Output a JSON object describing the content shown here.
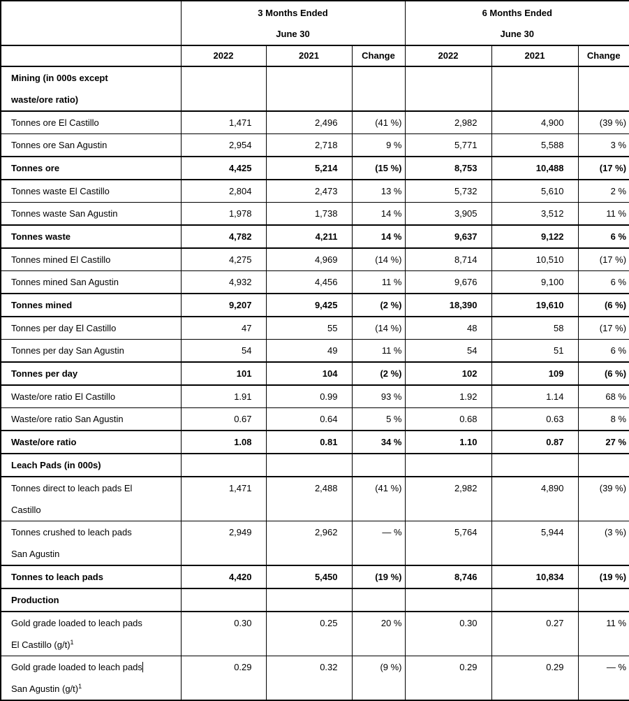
{
  "table": {
    "groups": [
      {
        "period": "3 Months Ended",
        "date": "June 30"
      },
      {
        "period": "6 Months Ended",
        "date": "June 30"
      }
    ],
    "col_headers": [
      "2022",
      "2021",
      "Change",
      "2022",
      "2021",
      "Change"
    ],
    "rows": [
      {
        "lines": [
          "Mining (in 000s except",
          "waste/ore ratio)"
        ],
        "bold": true,
        "section": true,
        "values": [
          "",
          "",
          "",
          "",
          "",
          ""
        ]
      },
      {
        "lines": [
          "Tonnes ore El Castillo"
        ],
        "bold": false,
        "values": [
          "1,471",
          "2,496",
          "(41 %)",
          "2,982",
          "4,900",
          "(39 %)"
        ]
      },
      {
        "lines": [
          "Tonnes ore San Agustin"
        ],
        "bold": false,
        "values": [
          "2,954",
          "2,718",
          "9 %",
          "5,771",
          "5,588",
          "3 %"
        ]
      },
      {
        "lines": [
          "Tonnes ore"
        ],
        "bold": true,
        "values": [
          "4,425",
          "5,214",
          "(15 %)",
          "8,753",
          "10,488",
          "(17 %)"
        ]
      },
      {
        "lines": [
          "Tonnes waste El Castillo"
        ],
        "bold": false,
        "values": [
          "2,804",
          "2,473",
          "13 %",
          "5,732",
          "5,610",
          "2 %"
        ]
      },
      {
        "lines": [
          "Tonnes waste San Agustin"
        ],
        "bold": false,
        "values": [
          "1,978",
          "1,738",
          "14 %",
          "3,905",
          "3,512",
          "11 %"
        ]
      },
      {
        "lines": [
          "Tonnes waste"
        ],
        "bold": true,
        "values": [
          "4,782",
          "4,211",
          "14 %",
          "9,637",
          "9,122",
          "6 %"
        ]
      },
      {
        "lines": [
          "Tonnes mined El Castillo"
        ],
        "bold": false,
        "values": [
          "4,275",
          "4,969",
          "(14 %)",
          "8,714",
          "10,510",
          "(17 %)"
        ]
      },
      {
        "lines": [
          "Tonnes mined San Agustin"
        ],
        "bold": false,
        "values": [
          "4,932",
          "4,456",
          "11 %",
          "9,676",
          "9,100",
          "6 %"
        ]
      },
      {
        "lines": [
          "Tonnes mined"
        ],
        "bold": true,
        "values": [
          "9,207",
          "9,425",
          "(2 %)",
          "18,390",
          "19,610",
          "(6 %)"
        ]
      },
      {
        "lines": [
          "Tonnes per day El Castillo"
        ],
        "bold": false,
        "values": [
          "47",
          "55",
          "(14 %)",
          "48",
          "58",
          "(17 %)"
        ]
      },
      {
        "lines": [
          "Tonnes per day San Agustin"
        ],
        "bold": false,
        "values": [
          "54",
          "49",
          "11 %",
          "54",
          "51",
          "6 %"
        ]
      },
      {
        "lines": [
          "Tonnes per day"
        ],
        "bold": true,
        "values": [
          "101",
          "104",
          "(2 %)",
          "102",
          "109",
          "(6 %)"
        ]
      },
      {
        "lines": [
          "Waste/ore ratio El Castillo"
        ],
        "bold": false,
        "values": [
          "1.91",
          "0.99",
          "93 %",
          "1.92",
          "1.14",
          "68 %"
        ]
      },
      {
        "lines": [
          "Waste/ore ratio San Agustin"
        ],
        "bold": false,
        "values": [
          "0.67",
          "0.64",
          "5 %",
          "0.68",
          "0.63",
          "8 %"
        ]
      },
      {
        "lines": [
          "Waste/ore ratio"
        ],
        "bold": true,
        "values": [
          "1.08",
          "0.81",
          "34 %",
          "1.10",
          "0.87",
          "27 %"
        ]
      },
      {
        "lines": [
          "Leach Pads (in 000s)"
        ],
        "bold": true,
        "section": true,
        "values": [
          "",
          "",
          "",
          "",
          "",
          ""
        ]
      },
      {
        "lines": [
          "Tonnes direct to leach pads El",
          "Castillo"
        ],
        "bold": false,
        "values": [
          "1,471",
          "2,488",
          "(41 %)",
          "2,982",
          "4,890",
          "(39 %)"
        ]
      },
      {
        "lines": [
          "Tonnes crushed to leach pads",
          "San Agustin"
        ],
        "bold": false,
        "values": [
          "2,949",
          "2,962",
          "— %",
          "5,764",
          "5,944",
          "(3 %)"
        ]
      },
      {
        "lines": [
          "Tonnes to leach pads"
        ],
        "bold": true,
        "values": [
          "4,420",
          "5,450",
          "(19 %)",
          "8,746",
          "10,834",
          "(19 %)"
        ]
      },
      {
        "lines": [
          "Production"
        ],
        "bold": true,
        "section": true,
        "values": [
          "",
          "",
          "",
          "",
          "",
          ""
        ]
      },
      {
        "lines": [
          "Gold grade loaded to leach pads",
          "El Castillo (g/t)"
        ],
        "bold": false,
        "sup": "1",
        "values": [
          "0.30",
          "0.25",
          "20 %",
          "0.30",
          "0.27",
          "11 %"
        ]
      },
      {
        "lines": [
          "Gold grade loaded to leach pads",
          "San Agustin (g/t)"
        ],
        "bold": false,
        "sup": "1",
        "caret": true,
        "values": [
          "0.29",
          "0.32",
          "(9 %)",
          "0.29",
          "0.29",
          "— %"
        ]
      }
    ]
  }
}
